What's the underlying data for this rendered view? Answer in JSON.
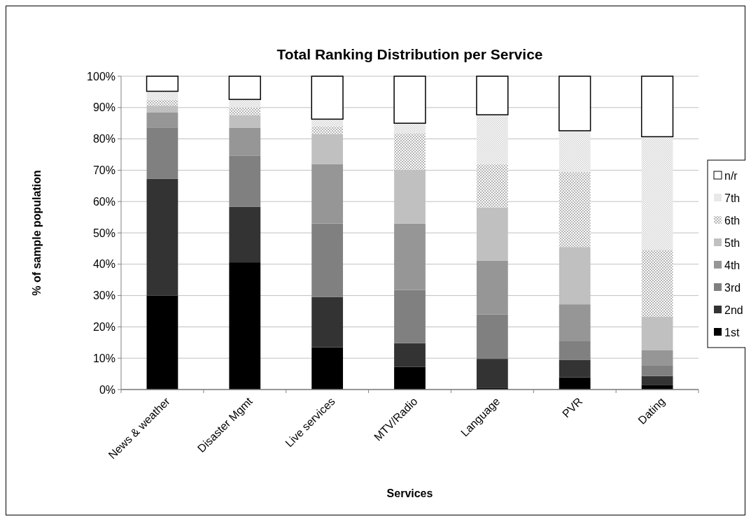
{
  "chart_data": {
    "type": "bar",
    "title": "Total Ranking Distribution per Service",
    "xlabel": "Services",
    "ylabel": "% of sample population",
    "categories": [
      "News & weather",
      "Disaster Mgmt",
      "Live services",
      "MTV/Radio",
      "Language",
      "PVR",
      "Dating"
    ],
    "stacked": true,
    "ylim": [
      0,
      100
    ],
    "yticks": [
      {
        "value": 0,
        "label": "0%"
      },
      {
        "value": 10,
        "label": "10%"
      },
      {
        "value": 20,
        "label": "20%"
      },
      {
        "value": 30,
        "label": "30%"
      },
      {
        "value": 40,
        "label": "40%"
      },
      {
        "value": 50,
        "label": "50%"
      },
      {
        "value": 60,
        "label": "60%"
      },
      {
        "value": 70,
        "label": "70%"
      },
      {
        "value": 80,
        "label": "80%"
      },
      {
        "value": 90,
        "label": "90%"
      },
      {
        "value": 100,
        "label": "100%"
      }
    ],
    "grid": "y",
    "legend": "right",
    "series": [
      {
        "name": "1st",
        "color": "#000000",
        "values": [
          30.0,
          40.6,
          13.5,
          7.2,
          0.6,
          3.9,
          1.5
        ]
      },
      {
        "name": "2nd",
        "color": "#333333",
        "values": [
          37.3,
          17.7,
          16.0,
          7.6,
          9.2,
          5.6,
          2.8
        ]
      },
      {
        "name": "3rd",
        "color": "#808080",
        "values": [
          16.2,
          16.4,
          23.5,
          17.0,
          14.2,
          5.9,
          3.3
        ]
      },
      {
        "name": "4th",
        "color": "#969696",
        "values": [
          4.9,
          8.8,
          19.0,
          21.2,
          17.1,
          11.8,
          4.9
        ]
      },
      {
        "name": "5th",
        "color": "#c0c0c0",
        "values": [
          2.2,
          4.0,
          9.6,
          17.1,
          17.0,
          18.3,
          10.7
        ]
      },
      {
        "name": "6th",
        "color": "#b4b4b4",
        "values": [
          1.9,
          2.5,
          2.4,
          11.6,
          13.8,
          23.9,
          21.4
        ]
      },
      {
        "name": "7th",
        "color": "#d2d2d2",
        "values": [
          2.7,
          2.6,
          2.3,
          3.3,
          15.8,
          13.2,
          36.1
        ]
      },
      {
        "name": "n/r",
        "color": "#ffffff",
        "values": [
          4.8,
          7.4,
          13.7,
          15.0,
          12.3,
          17.4,
          19.3
        ]
      }
    ]
  }
}
